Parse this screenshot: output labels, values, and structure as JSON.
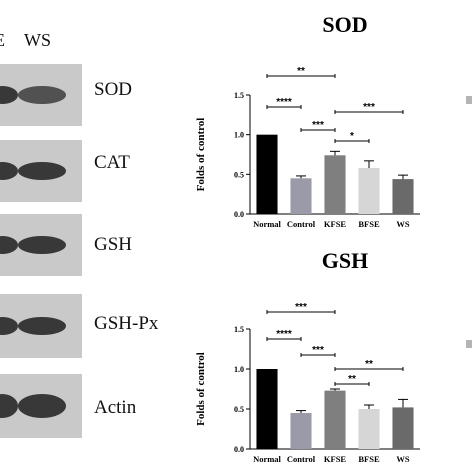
{
  "blot_panel": {
    "lane_labels": [
      "E",
      "WS"
    ],
    "protein_labels": [
      "SOD",
      "CAT",
      "GSH",
      "GSH-Px",
      "Actin"
    ]
  },
  "chart_data": [
    {
      "type": "bar",
      "title": "SOD",
      "ylabel": "Folds of control",
      "categories": [
        "Normal",
        "Control",
        "KFSE",
        "BFSE",
        "WS"
      ],
      "values": [
        1.0,
        0.45,
        0.74,
        0.58,
        0.44
      ],
      "errors": [
        0,
        0.03,
        0.05,
        0.09,
        0.05
      ],
      "bar_colors": [
        "#000000",
        "#9a9aa8",
        "#7f7f7f",
        "#d6d6d6",
        "#6a6a6a"
      ],
      "ylim": [
        0.0,
        1.5
      ],
      "yticks": [
        "0.0",
        "0.5",
        "1.0",
        "1.5"
      ],
      "significance": [
        {
          "from": "Normal",
          "to": "KFSE",
          "label": "**"
        },
        {
          "from": "Normal",
          "to": "Control",
          "label": "****"
        },
        {
          "from": "Control",
          "to": "KFSE",
          "label": "***"
        },
        {
          "from": "KFSE",
          "to": "WS",
          "label": "***"
        },
        {
          "from": "KFSE",
          "to": "BFSE",
          "label": "*"
        }
      ]
    },
    {
      "type": "bar",
      "title": "GSH",
      "ylabel": "Folds of control",
      "categories": [
        "Normal",
        "Control",
        "KFSE",
        "BFSE",
        "WS"
      ],
      "values": [
        1.0,
        0.45,
        0.73,
        0.5,
        0.52
      ],
      "errors": [
        0,
        0.03,
        0.02,
        0.05,
        0.1
      ],
      "bar_colors": [
        "#000000",
        "#9a9aa8",
        "#7f7f7f",
        "#d6d6d6",
        "#6a6a6a"
      ],
      "ylim": [
        0.0,
        1.5
      ],
      "yticks": [
        "0.0",
        "0.5",
        "1.0",
        "1.5"
      ],
      "significance": [
        {
          "from": "Normal",
          "to": "KFSE",
          "label": "***"
        },
        {
          "from": "Normal",
          "to": "Control",
          "label": "****"
        },
        {
          "from": "Control",
          "to": "KFSE",
          "label": "***"
        },
        {
          "from": "KFSE",
          "to": "WS",
          "label": "**"
        },
        {
          "from": "KFSE",
          "to": "BFSE",
          "label": "**"
        }
      ]
    }
  ]
}
